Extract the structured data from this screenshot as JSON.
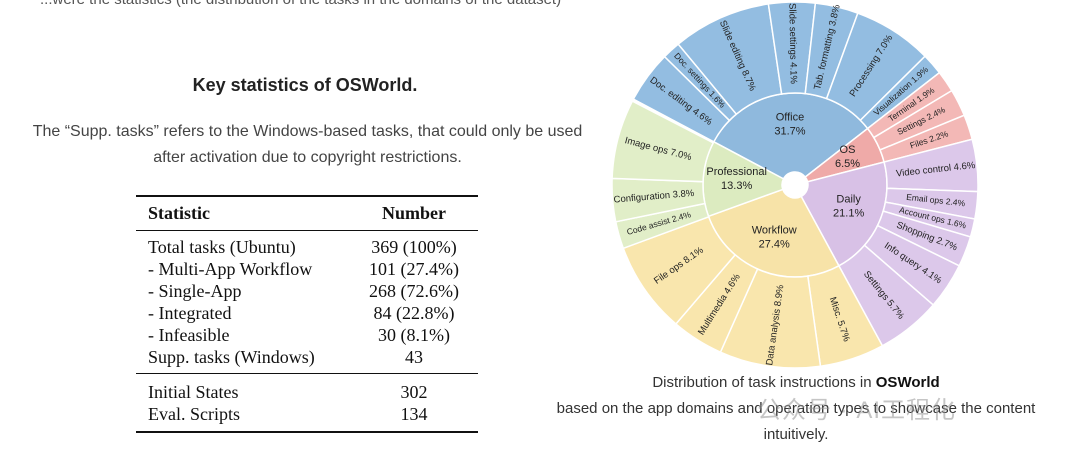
{
  "top_clipped_text": "...were the statistics (the distribution of the tasks in the domains of the dataset)",
  "left": {
    "title": "Key statistics of OSWorld.",
    "caption": "The “Supp. tasks” refers to the Windows-based tasks, that could only be used after activation due to copyright restrictions.",
    "table": {
      "headers": [
        "Statistic",
        "Number"
      ],
      "rows_main": [
        {
          "label": "Total tasks (Ubuntu)",
          "value": "369 (100%)"
        },
        {
          "label": "- Multi-App Workflow",
          "value": "101 (27.4%)"
        },
        {
          "label": "- Single-App",
          "value": "268 (72.6%)"
        },
        {
          "label": "- Integrated",
          "value": "84 (22.8%)"
        },
        {
          "label": "- Infeasible",
          "value": "30 (8.1%)"
        },
        {
          "label": "Supp. tasks (Windows)",
          "value": "43"
        }
      ],
      "rows_extra": [
        {
          "label": "Initial States",
          "value": "302"
        },
        {
          "label": "Eval. Scripts",
          "value": "134"
        }
      ]
    }
  },
  "right": {
    "caption_prefix": "Distribution of task instructions in ",
    "caption_bold": "OSWorld",
    "caption_rest": "based on the app domains and operation types to showcase the content intuitively.",
    "watermark": "公众号 · AI工程化"
  },
  "chart_data": {
    "type": "sunburst",
    "title": "",
    "inner": [
      {
        "name": "Office",
        "percent": 31.7,
        "label": "31.7%",
        "color": "#8fb9dd"
      },
      {
        "name": "OS",
        "percent": 6.5,
        "label": "6.5%",
        "color": "#efaaa8"
      },
      {
        "name": "Daily",
        "percent": 21.1,
        "label": "21.1%",
        "color": "#d8c1e6"
      },
      {
        "name": "Workflow",
        "percent": 27.4,
        "label": "27.4%",
        "color": "#f7e3a8"
      },
      {
        "name": "Professional",
        "percent": 13.3,
        "label": "13.3%",
        "color": "#dcebc0"
      }
    ],
    "outer": [
      {
        "label": "Slide editing 8.7%",
        "percent": 8.7,
        "group": "Office",
        "color": "#93bde1"
      },
      {
        "label": "Slide settings 4.1%",
        "percent": 4.1,
        "group": "Office",
        "color": "#93bde1"
      },
      {
        "label": "Tab. formatting 3.8%",
        "percent": 3.8,
        "group": "Office",
        "color": "#93bde1"
      },
      {
        "label": "Processing 7.0%",
        "percent": 7.0,
        "group": "Office",
        "color": "#93bde1"
      },
      {
        "label": "Visualization 1.9%",
        "percent": 1.9,
        "group": "Office",
        "color": "#93bde1"
      },
      {
        "label": "Terminal 1.9%",
        "percent": 1.9,
        "group": "OS",
        "color": "#f3b8b6"
      },
      {
        "label": "Settings 2.4%",
        "percent": 2.4,
        "group": "OS",
        "color": "#f3b8b6"
      },
      {
        "label": "Files 2.2%",
        "percent": 2.2,
        "group": "OS",
        "color": "#f3b8b6"
      },
      {
        "label": "Video control 4.6%",
        "percent": 4.6,
        "group": "Daily",
        "color": "#dcc8ea"
      },
      {
        "label": "Email ops 2.4%",
        "percent": 2.4,
        "group": "Daily",
        "color": "#dcc8ea"
      },
      {
        "label": "Account ops 1.6%",
        "percent": 1.6,
        "group": "Daily",
        "color": "#dcc8ea"
      },
      {
        "label": "Shopping 2.7%",
        "percent": 2.7,
        "group": "Daily",
        "color": "#dcc8ea"
      },
      {
        "label": "Info query 4.1%",
        "percent": 4.1,
        "group": "Daily",
        "color": "#dcc8ea"
      },
      {
        "label": "Settings 5.7%",
        "percent": 5.7,
        "group": "Daily",
        "color": "#dcc8ea"
      },
      {
        "label": "Misc. 5.7%",
        "percent": 5.7,
        "group": "Workflow",
        "color": "#f9e6ad"
      },
      {
        "label": "Data analysis 8.9%",
        "percent": 8.9,
        "group": "Workflow",
        "color": "#f9e6ad"
      },
      {
        "label": "Multimedia 4.6%",
        "percent": 4.6,
        "group": "Workflow",
        "color": "#f9e6ad"
      },
      {
        "label": "File ops 8.1%",
        "percent": 8.1,
        "group": "Workflow",
        "color": "#f9e6ad"
      },
      {
        "label": "Code assist 2.4%",
        "percent": 2.4,
        "group": "Professional",
        "color": "#e1eec8"
      },
      {
        "label": "Configuration 3.8%",
        "percent": 3.8,
        "group": "Professional",
        "color": "#e1eec8"
      },
      {
        "label": "Image ops 7.0%",
        "percent": 7.0,
        "group": "Professional",
        "color": "#e1eec8"
      },
      {
        "label": "Doc. editing 4.6%",
        "percent": 4.6,
        "group": "Office",
        "color": "#93bde1"
      },
      {
        "label": "Doc. settings 1.6%",
        "percent": 1.6,
        "group": "Office",
        "color": "#93bde1"
      }
    ]
  }
}
